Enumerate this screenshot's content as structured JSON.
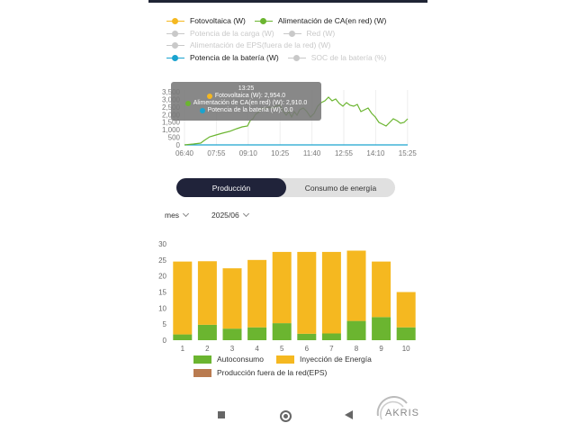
{
  "colors": {
    "solar": "#f5b820",
    "ac": "#6bb530",
    "battery": "#1aa3cf",
    "eps": "#b97b50",
    "faded": "#c9c9c9",
    "active_tab": "#20233a"
  },
  "legend": {
    "row1": [
      {
        "label": "Fotovoltaica (W)",
        "color": "#f5b820",
        "faded": false
      },
      {
        "label": "Alimentación de CA(en red) (W)",
        "color": "#6bb530",
        "faded": false
      }
    ],
    "row2": [
      {
        "label": "Potencia de la carga (W)",
        "faded": true
      },
      {
        "label": "Red (W)",
        "faded": true
      }
    ],
    "row3": [
      {
        "label": "Alimentación de EPS(fuera de la red) (W)",
        "faded": true
      }
    ],
    "row4": [
      {
        "label": "Potencia de la batería (W)",
        "color": "#1aa3cf",
        "faded": false
      },
      {
        "label": "SOC de la batería (%)",
        "faded": true
      }
    ]
  },
  "line_chart": {
    "y_ticks": [
      "3,500",
      "3,000",
      "2,500",
      "2,000",
      "1,500",
      "1,000",
      "500",
      "0"
    ],
    "x_ticks": [
      "06:40",
      "07:55",
      "09:10",
      "10:25",
      "11:40",
      "12:55",
      "14:10",
      "15:25"
    ],
    "tooltip": {
      "time": "13:25",
      "rows": [
        {
          "icon": "solar-dot-icon",
          "text": "Fotovoltaica (W): 2,954.0"
        },
        {
          "icon": "ac-dot-icon",
          "text": "Alimentación de CA(en red) (W): 2,910.0"
        },
        {
          "icon": "battery-dot-icon",
          "text": "Potencia de la batería (W): 0.0"
        }
      ]
    }
  },
  "tabs": {
    "active": "Producción",
    "inactive": "Consumo de energía"
  },
  "filters": {
    "period": "mes",
    "date": "2025/06"
  },
  "chart_data": {
    "type": "bar",
    "stacked": true,
    "categories": [
      "1",
      "2",
      "3",
      "4",
      "5",
      "6",
      "7",
      "8",
      "9",
      "10"
    ],
    "ylim": [
      0,
      30
    ],
    "y_ticks": [
      "0",
      "5",
      "10",
      "15",
      "20",
      "25",
      "30"
    ],
    "series": [
      {
        "name": "Autoconsumo",
        "color": "#6bb530",
        "values": [
          1.8,
          4.8,
          3.6,
          4.0,
          5.3,
          2.0,
          2.1,
          6.0,
          7.2,
          4.0
        ]
      },
      {
        "name": "Inyección de Energía",
        "color": "#f5b820",
        "values": [
          22.7,
          19.8,
          18.8,
          21.0,
          22.2,
          25.5,
          25.4,
          21.9,
          17.3,
          11.0
        ]
      },
      {
        "name": "Producción fuera de la red(EPS)",
        "color": "#b97b50",
        "values": [
          0,
          0,
          0,
          0,
          0,
          0,
          0,
          0,
          0,
          0
        ]
      }
    ],
    "legend_placement": "bottom"
  },
  "logo": {
    "text": "AKRIS"
  }
}
